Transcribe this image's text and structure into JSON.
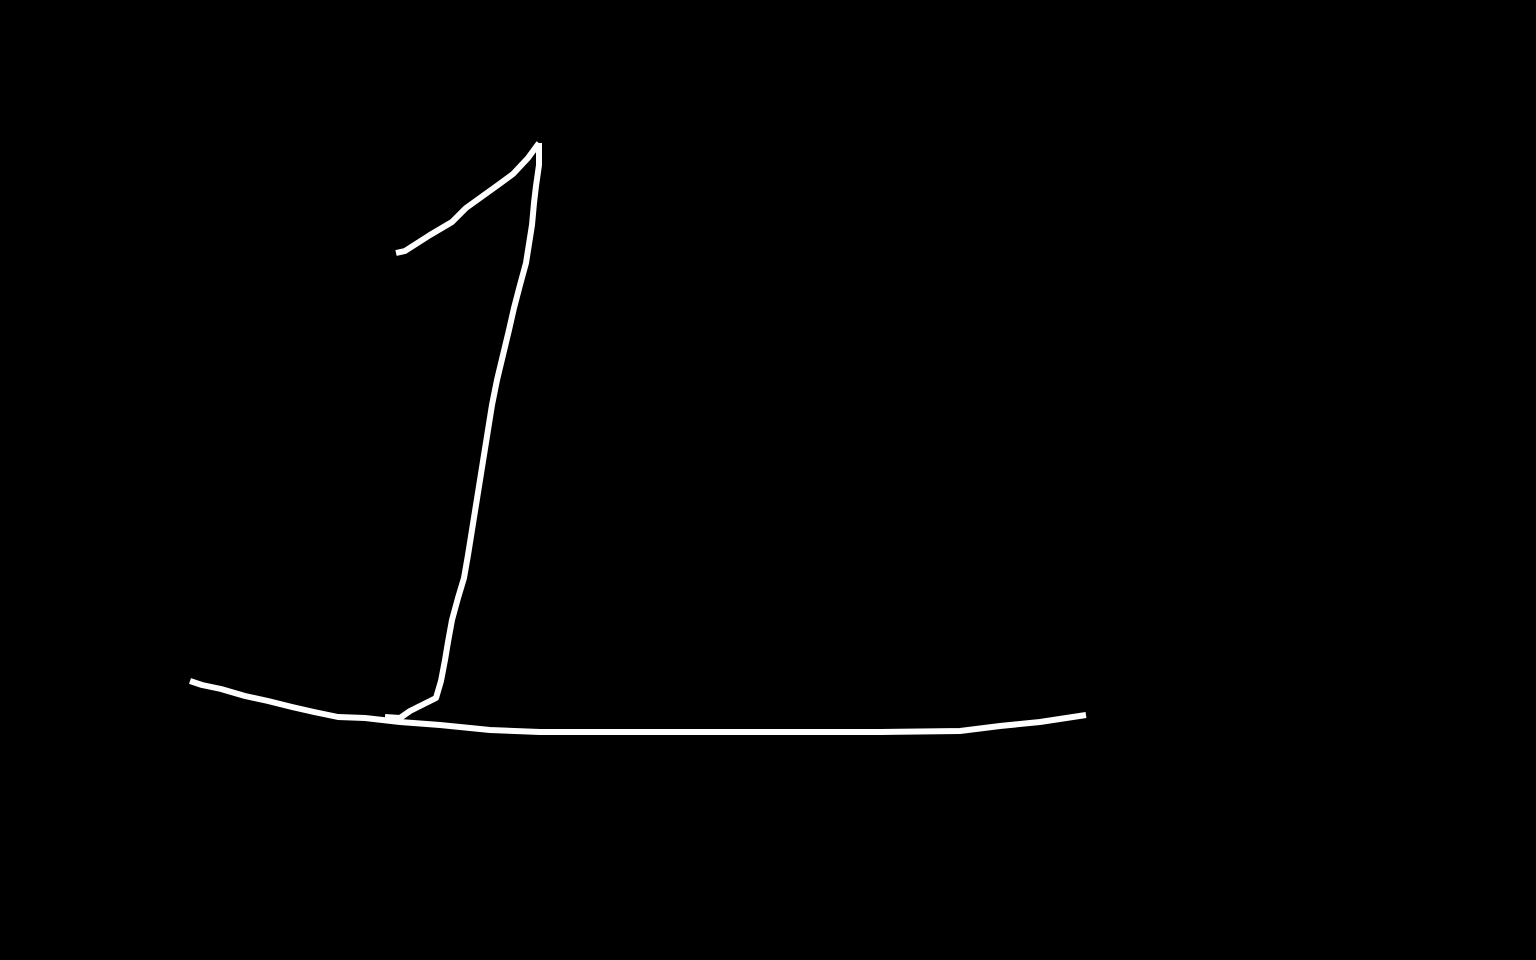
{
  "canvas": {
    "background_color": "#000000",
    "stroke_color": "#ffffff"
  },
  "drawing": {
    "strokes": [
      {
        "name": "digit-one-flag-stroke"
      },
      {
        "name": "digit-one-stem-stroke"
      },
      {
        "name": "baseline-underline-stroke"
      }
    ]
  }
}
